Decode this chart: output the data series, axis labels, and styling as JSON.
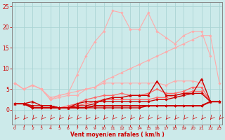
{
  "x": [
    0,
    1,
    2,
    3,
    4,
    5,
    6,
    7,
    8,
    9,
    10,
    11,
    12,
    13,
    14,
    15,
    16,
    17,
    18,
    19,
    20,
    21,
    22,
    23
  ],
  "series": [
    {
      "color": "#ffaaaa",
      "linewidth": 0.8,
      "marker": "D",
      "markersize": 1.8,
      "values": [
        6.5,
        5,
        6,
        5,
        3,
        3.5,
        4,
        8.5,
        13,
        16.5,
        19,
        24,
        23.5,
        19.5,
        19.5,
        23.5,
        19,
        17.5,
        16,
        18,
        19,
        19,
        13,
        null
      ]
    },
    {
      "color": "#ffaaaa",
      "linewidth": 0.8,
      "marker": "D",
      "markersize": 1.8,
      "values": [
        6.5,
        5,
        6,
        5,
        2.5,
        3.5,
        4,
        4.5,
        5,
        5.5,
        6.5,
        6.5,
        6.5,
        6.5,
        6.5,
        6.5,
        6.5,
        6,
        7,
        7,
        7,
        6.5,
        null,
        null
      ]
    },
    {
      "color": "#ffaaaa",
      "linewidth": 0.8,
      "marker": "D",
      "markersize": 1.8,
      "values": [
        6.5,
        5,
        6,
        5,
        2.5,
        3,
        3.5,
        3.5,
        5,
        5.5,
        7,
        8,
        9,
        10,
        11,
        12,
        13,
        14,
        15,
        16,
        17,
        18,
        18,
        6.5
      ]
    },
    {
      "color": "#ff6666",
      "linewidth": 0.9,
      "marker": "D",
      "markersize": 1.8,
      "values": [
        1.5,
        1.5,
        1,
        1,
        1,
        0.5,
        1,
        1.5,
        2.5,
        3,
        3.5,
        3.5,
        4,
        3.5,
        3.5,
        4,
        5,
        4,
        4,
        4.5,
        5.5,
        5.5,
        2,
        2
      ]
    },
    {
      "color": "#ff6666",
      "linewidth": 0.9,
      "marker": "D",
      "markersize": 1.8,
      "values": [
        1.5,
        1.5,
        0.5,
        0.5,
        0.5,
        0.5,
        0.5,
        1,
        1.5,
        2,
        2.5,
        2.5,
        2.5,
        2.5,
        2.5,
        2.5,
        3,
        3,
        3.5,
        4,
        4.5,
        4.5,
        2,
        2
      ]
    },
    {
      "color": "#cc0000",
      "linewidth": 1.0,
      "marker": "^",
      "markersize": 2.5,
      "values": [
        1.5,
        1.5,
        2,
        1,
        1,
        0.5,
        0.5,
        1,
        1,
        1.5,
        2.5,
        3,
        3,
        3.5,
        3.5,
        3.5,
        7,
        3.5,
        3.5,
        4,
        4,
        7.5,
        2,
        2
      ]
    },
    {
      "color": "#cc0000",
      "linewidth": 1.0,
      "marker": "D",
      "markersize": 1.8,
      "values": [
        1.5,
        1.5,
        1,
        1,
        1,
        0.5,
        0.5,
        1.5,
        2,
        2,
        2,
        2,
        2,
        2,
        2,
        2,
        2.5,
        2.5,
        3,
        3.5,
        4,
        4,
        2,
        2
      ]
    },
    {
      "color": "#cc0000",
      "linewidth": 1.0,
      "marker": "D",
      "markersize": 1.8,
      "values": [
        1.5,
        1.5,
        0.5,
        0.5,
        0.5,
        0.5,
        0.5,
        0.5,
        0.5,
        0.5,
        0.5,
        0.5,
        0.5,
        0.5,
        0.5,
        1,
        1,
        1,
        1,
        1,
        1,
        1,
        2,
        2
      ]
    },
    {
      "color": "#cc0000",
      "linewidth": 1.5,
      "marker": "D",
      "markersize": 1.8,
      "values": [
        1.5,
        1.5,
        0.5,
        0.5,
        0.5,
        0.5,
        0.5,
        0.5,
        0.5,
        1,
        1,
        1,
        1,
        1,
        1,
        1,
        1,
        1,
        1,
        1,
        1,
        1,
        2,
        2
      ]
    }
  ],
  "xlim": [
    -0.3,
    23.3
  ],
  "ylim": [
    -3.5,
    26
  ],
  "yticks": [
    0,
    5,
    10,
    15,
    20,
    25
  ],
  "xticks": [
    0,
    1,
    2,
    3,
    4,
    5,
    6,
    7,
    8,
    9,
    10,
    11,
    12,
    13,
    14,
    15,
    16,
    17,
    18,
    19,
    20,
    21,
    22,
    23
  ],
  "xlabel": "Vent moyen/en rafales ( km/h )",
  "background_color": "#cceaea",
  "grid_color": "#aad4d4",
  "tick_color": "#cc0000",
  "label_color": "#cc0000"
}
